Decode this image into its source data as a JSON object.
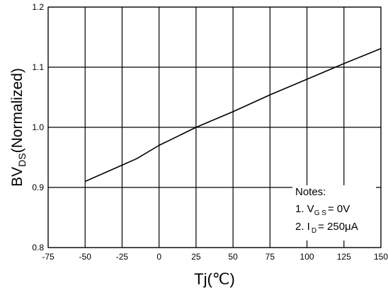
{
  "chart_data": {
    "type": "line",
    "xlabel": "Tj(℃)",
    "ylabel_main": "BV",
    "ylabel_sub": "DS",
    "ylabel_rest": "(Normalized)",
    "xlim": [
      -75,
      150
    ],
    "ylim": [
      0.8,
      1.2
    ],
    "x_ticks": [
      "-75",
      "-50",
      "-25",
      "0",
      "25",
      "50",
      "75",
      "100",
      "125",
      "150"
    ],
    "y_ticks": [
      "0.8",
      "0.9",
      "1.0",
      "1.1",
      "1.2"
    ],
    "grid": true,
    "series": [
      {
        "color": "#000000",
        "x": [
          -50,
          -25,
          -15,
          0,
          10,
          25,
          50,
          75,
          100,
          125,
          150
        ],
        "y": [
          0.91,
          0.937,
          0.948,
          0.97,
          0.982,
          1.0,
          1.026,
          1.054,
          1.08,
          1.106,
          1.131
        ]
      }
    ],
    "notes": {
      "heading": "Notes:",
      "line1_prefix": "1. V",
      "line1_sub": "G S",
      "line1_suffix": "= 0V",
      "line2_prefix": "2. I",
      "line2_sub": "D",
      "line2_suffix": "= 250μA"
    }
  }
}
